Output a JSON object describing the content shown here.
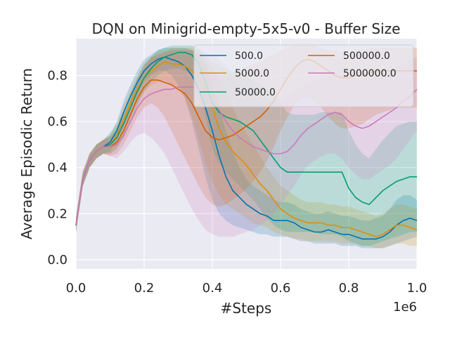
{
  "chart_data": {
    "type": "line",
    "title": "DQN on Minigrid-empty-5x5-v0 - Buffer Size",
    "xlabel": "#Steps",
    "ylabel": "Average Episodic Return",
    "x_offset_label": "1e6",
    "xlim": [
      0.0,
      1.0
    ],
    "ylim": [
      -0.04,
      0.96
    ],
    "xticks": [
      "0.0",
      "0.2",
      "0.4",
      "0.6",
      "0.8",
      "1.0"
    ],
    "yticks": [
      "0.0",
      "0.2",
      "0.4",
      "0.6",
      "0.8"
    ],
    "grid": true,
    "legend_position": "top-right",
    "x": [
      0.0,
      0.02,
      0.04,
      0.06,
      0.08,
      0.1,
      0.12,
      0.14,
      0.16,
      0.18,
      0.2,
      0.22,
      0.24,
      0.26,
      0.28,
      0.3,
      0.32,
      0.34,
      0.36,
      0.38,
      0.4,
      0.42,
      0.44,
      0.46,
      0.48,
      0.5,
      0.52,
      0.54,
      0.56,
      0.58,
      0.6,
      0.62,
      0.64,
      0.66,
      0.68,
      0.7,
      0.72,
      0.74,
      0.76,
      0.78,
      0.8,
      0.82,
      0.84,
      0.86,
      0.88,
      0.9,
      0.92,
      0.94,
      0.96,
      0.98,
      1.0
    ],
    "series": [
      {
        "name": "500.0",
        "color": "#0173b2",
        "values": [
          0.15,
          0.35,
          0.43,
          0.47,
          0.49,
          0.51,
          0.56,
          0.64,
          0.71,
          0.77,
          0.82,
          0.85,
          0.87,
          0.88,
          0.87,
          0.86,
          0.84,
          0.8,
          0.74,
          0.66,
          0.56,
          0.45,
          0.36,
          0.3,
          0.27,
          0.24,
          0.22,
          0.2,
          0.19,
          0.17,
          0.17,
          0.17,
          0.16,
          0.14,
          0.13,
          0.12,
          0.12,
          0.13,
          0.12,
          0.11,
          0.11,
          0.1,
          0.09,
          0.09,
          0.09,
          0.1,
          0.12,
          0.15,
          0.17,
          0.18,
          0.17
        ],
        "lower": [
          0.12,
          0.32,
          0.4,
          0.44,
          0.46,
          0.47,
          0.52,
          0.59,
          0.66,
          0.72,
          0.77,
          0.8,
          0.82,
          0.82,
          0.8,
          0.76,
          0.7,
          0.6,
          0.48,
          0.36,
          0.26,
          0.2,
          0.17,
          0.15,
          0.14,
          0.13,
          0.12,
          0.11,
          0.11,
          0.1,
          0.1,
          0.1,
          0.09,
          0.08,
          0.08,
          0.07,
          0.07,
          0.07,
          0.07,
          0.06,
          0.06,
          0.06,
          0.05,
          0.05,
          0.05,
          0.05,
          0.06,
          0.07,
          0.08,
          0.09,
          0.1
        ],
        "upper": [
          0.18,
          0.38,
          0.46,
          0.5,
          0.52,
          0.55,
          0.6,
          0.69,
          0.76,
          0.82,
          0.87,
          0.89,
          0.91,
          0.92,
          0.92,
          0.92,
          0.92,
          0.91,
          0.89,
          0.84,
          0.76,
          0.66,
          0.56,
          0.47,
          0.4,
          0.35,
          0.32,
          0.3,
          0.28,
          0.26,
          0.25,
          0.25,
          0.24,
          0.22,
          0.21,
          0.2,
          0.2,
          0.21,
          0.2,
          0.19,
          0.19,
          0.18,
          0.17,
          0.17,
          0.18,
          0.19,
          0.22,
          0.26,
          0.28,
          0.28,
          0.26
        ]
      },
      {
        "name": "5000.0",
        "color": "#de8f05",
        "values": [
          0.15,
          0.35,
          0.43,
          0.47,
          0.49,
          0.5,
          0.54,
          0.61,
          0.68,
          0.74,
          0.79,
          0.82,
          0.84,
          0.86,
          0.85,
          0.85,
          0.84,
          0.82,
          0.79,
          0.74,
          0.66,
          0.57,
          0.51,
          0.47,
          0.44,
          0.41,
          0.37,
          0.33,
          0.3,
          0.26,
          0.22,
          0.2,
          0.18,
          0.17,
          0.16,
          0.16,
          0.16,
          0.15,
          0.15,
          0.14,
          0.14,
          0.13,
          0.12,
          0.11,
          0.1,
          0.11,
          0.13,
          0.15,
          0.15,
          0.14,
          0.13
        ],
        "lower": [
          0.12,
          0.32,
          0.4,
          0.44,
          0.46,
          0.46,
          0.49,
          0.55,
          0.62,
          0.68,
          0.73,
          0.76,
          0.77,
          0.78,
          0.76,
          0.74,
          0.7,
          0.62,
          0.52,
          0.42,
          0.34,
          0.28,
          0.24,
          0.22,
          0.2,
          0.18,
          0.16,
          0.15,
          0.14,
          0.12,
          0.11,
          0.1,
          0.09,
          0.09,
          0.08,
          0.08,
          0.08,
          0.08,
          0.08,
          0.07,
          0.07,
          0.07,
          0.06,
          0.06,
          0.05,
          0.05,
          0.06,
          0.07,
          0.07,
          0.06,
          0.06
        ],
        "upper": [
          0.18,
          0.38,
          0.46,
          0.5,
          0.52,
          0.54,
          0.59,
          0.67,
          0.74,
          0.8,
          0.85,
          0.88,
          0.9,
          0.91,
          0.92,
          0.92,
          0.92,
          0.92,
          0.91,
          0.88,
          0.84,
          0.78,
          0.72,
          0.66,
          0.6,
          0.55,
          0.5,
          0.45,
          0.4,
          0.36,
          0.32,
          0.3,
          0.28,
          0.26,
          0.25,
          0.25,
          0.25,
          0.24,
          0.24,
          0.23,
          0.23,
          0.22,
          0.21,
          0.2,
          0.19,
          0.2,
          0.22,
          0.24,
          0.24,
          0.23,
          0.22
        ]
      },
      {
        "name": "50000.0",
        "color": "#029e73",
        "values": [
          0.15,
          0.35,
          0.43,
          0.47,
          0.49,
          0.5,
          0.53,
          0.59,
          0.66,
          0.73,
          0.79,
          0.83,
          0.86,
          0.88,
          0.89,
          0.9,
          0.9,
          0.89,
          0.85,
          0.77,
          0.68,
          0.64,
          0.62,
          0.61,
          0.6,
          0.58,
          0.56,
          0.52,
          0.48,
          0.44,
          0.4,
          0.38,
          0.38,
          0.38,
          0.38,
          0.38,
          0.38,
          0.38,
          0.38,
          0.38,
          0.31,
          0.27,
          0.25,
          0.24,
          0.27,
          0.3,
          0.32,
          0.34,
          0.35,
          0.36,
          0.36
        ],
        "lower": [
          0.12,
          0.32,
          0.4,
          0.44,
          0.46,
          0.46,
          0.48,
          0.53,
          0.6,
          0.67,
          0.73,
          0.77,
          0.8,
          0.82,
          0.83,
          0.83,
          0.82,
          0.8,
          0.74,
          0.62,
          0.48,
          0.42,
          0.38,
          0.35,
          0.32,
          0.29,
          0.26,
          0.22,
          0.18,
          0.15,
          0.13,
          0.12,
          0.12,
          0.12,
          0.12,
          0.12,
          0.11,
          0.11,
          0.11,
          0.1,
          0.08,
          0.07,
          0.06,
          0.06,
          0.07,
          0.08,
          0.09,
          0.1,
          0.11,
          0.12,
          0.12
        ],
        "upper": [
          0.18,
          0.38,
          0.46,
          0.5,
          0.52,
          0.54,
          0.58,
          0.65,
          0.72,
          0.79,
          0.85,
          0.88,
          0.91,
          0.92,
          0.93,
          0.93,
          0.93,
          0.93,
          0.92,
          0.89,
          0.86,
          0.84,
          0.83,
          0.82,
          0.81,
          0.8,
          0.78,
          0.76,
          0.74,
          0.72,
          0.68,
          0.64,
          0.63,
          0.63,
          0.63,
          0.63,
          0.64,
          0.64,
          0.64,
          0.64,
          0.56,
          0.5,
          0.46,
          0.44,
          0.48,
          0.52,
          0.55,
          0.58,
          0.59,
          0.6,
          0.6
        ]
      },
      {
        "name": "500000.0",
        "color": "#d55e00",
        "values": [
          0.15,
          0.35,
          0.43,
          0.47,
          0.49,
          0.49,
          0.51,
          0.56,
          0.63,
          0.7,
          0.75,
          0.78,
          0.78,
          0.77,
          0.76,
          0.74,
          0.72,
          0.68,
          0.62,
          0.56,
          0.53,
          0.52,
          0.53,
          0.54,
          0.56,
          0.58,
          0.6,
          0.62,
          0.65,
          0.69,
          0.74,
          0.79,
          0.83,
          0.86,
          0.87,
          0.86,
          0.84,
          0.82,
          0.8,
          0.79,
          0.79,
          0.8,
          0.8,
          0.81,
          0.82,
          0.82,
          0.82,
          0.82,
          0.82,
          0.82,
          0.82
        ],
        "lower": [
          0.12,
          0.32,
          0.4,
          0.44,
          0.46,
          0.45,
          0.46,
          0.5,
          0.56,
          0.62,
          0.66,
          0.68,
          0.66,
          0.62,
          0.56,
          0.5,
          0.44,
          0.38,
          0.32,
          0.27,
          0.24,
          0.23,
          0.24,
          0.26,
          0.28,
          0.31,
          0.34,
          0.38,
          0.43,
          0.49,
          0.56,
          0.62,
          0.67,
          0.7,
          0.71,
          0.69,
          0.66,
          0.62,
          0.59,
          0.57,
          0.57,
          0.58,
          0.59,
          0.61,
          0.63,
          0.64,
          0.65,
          0.66,
          0.66,
          0.66,
          0.66
        ],
        "upper": [
          0.18,
          0.38,
          0.46,
          0.5,
          0.52,
          0.53,
          0.56,
          0.62,
          0.7,
          0.78,
          0.84,
          0.88,
          0.89,
          0.9,
          0.91,
          0.91,
          0.91,
          0.91,
          0.9,
          0.86,
          0.82,
          0.8,
          0.8,
          0.81,
          0.82,
          0.84,
          0.85,
          0.86,
          0.88,
          0.89,
          0.91,
          0.92,
          0.93,
          0.93,
          0.93,
          0.93,
          0.92,
          0.91,
          0.91,
          0.9,
          0.9,
          0.91,
          0.91,
          0.92,
          0.92,
          0.92,
          0.92,
          0.92,
          0.92,
          0.92,
          0.92
        ]
      },
      {
        "name": "5000000.0",
        "color": "#cc78bc",
        "values": [
          0.15,
          0.35,
          0.43,
          0.47,
          0.49,
          0.49,
          0.5,
          0.54,
          0.6,
          0.66,
          0.7,
          0.72,
          0.73,
          0.74,
          0.74,
          0.75,
          0.75,
          0.75,
          0.74,
          0.72,
          0.69,
          0.65,
          0.6,
          0.56,
          0.53,
          0.51,
          0.49,
          0.48,
          0.47,
          0.46,
          0.46,
          0.47,
          0.5,
          0.54,
          0.57,
          0.59,
          0.61,
          0.63,
          0.64,
          0.63,
          0.6,
          0.58,
          0.57,
          0.58,
          0.6,
          0.62,
          0.64,
          0.66,
          0.69,
          0.71,
          0.74
        ],
        "lower": [
          0.12,
          0.32,
          0.4,
          0.44,
          0.46,
          0.45,
          0.44,
          0.47,
          0.51,
          0.54,
          0.55,
          0.53,
          0.5,
          0.46,
          0.4,
          0.34,
          0.28,
          0.22,
          0.17,
          0.13,
          0.11,
          0.1,
          0.1,
          0.1,
          0.11,
          0.12,
          0.13,
          0.15,
          0.17,
          0.2,
          0.24,
          0.28,
          0.32,
          0.37,
          0.41,
          0.43,
          0.45,
          0.46,
          0.46,
          0.44,
          0.4,
          0.37,
          0.35,
          0.35,
          0.37,
          0.39,
          0.41,
          0.44,
          0.48,
          0.52,
          0.56
        ],
        "upper": [
          0.18,
          0.38,
          0.46,
          0.5,
          0.52,
          0.53,
          0.56,
          0.62,
          0.69,
          0.77,
          0.83,
          0.87,
          0.89,
          0.9,
          0.91,
          0.91,
          0.91,
          0.91,
          0.91,
          0.9,
          0.89,
          0.87,
          0.84,
          0.8,
          0.77,
          0.74,
          0.72,
          0.7,
          0.69,
          0.69,
          0.7,
          0.71,
          0.73,
          0.75,
          0.77,
          0.78,
          0.79,
          0.8,
          0.81,
          0.81,
          0.8,
          0.79,
          0.78,
          0.79,
          0.8,
          0.81,
          0.82,
          0.84,
          0.85,
          0.87,
          0.88
        ]
      }
    ]
  },
  "colors": {
    "plot_background": "#eaeaf2",
    "grid": "#ffffff",
    "text": "#262626"
  }
}
